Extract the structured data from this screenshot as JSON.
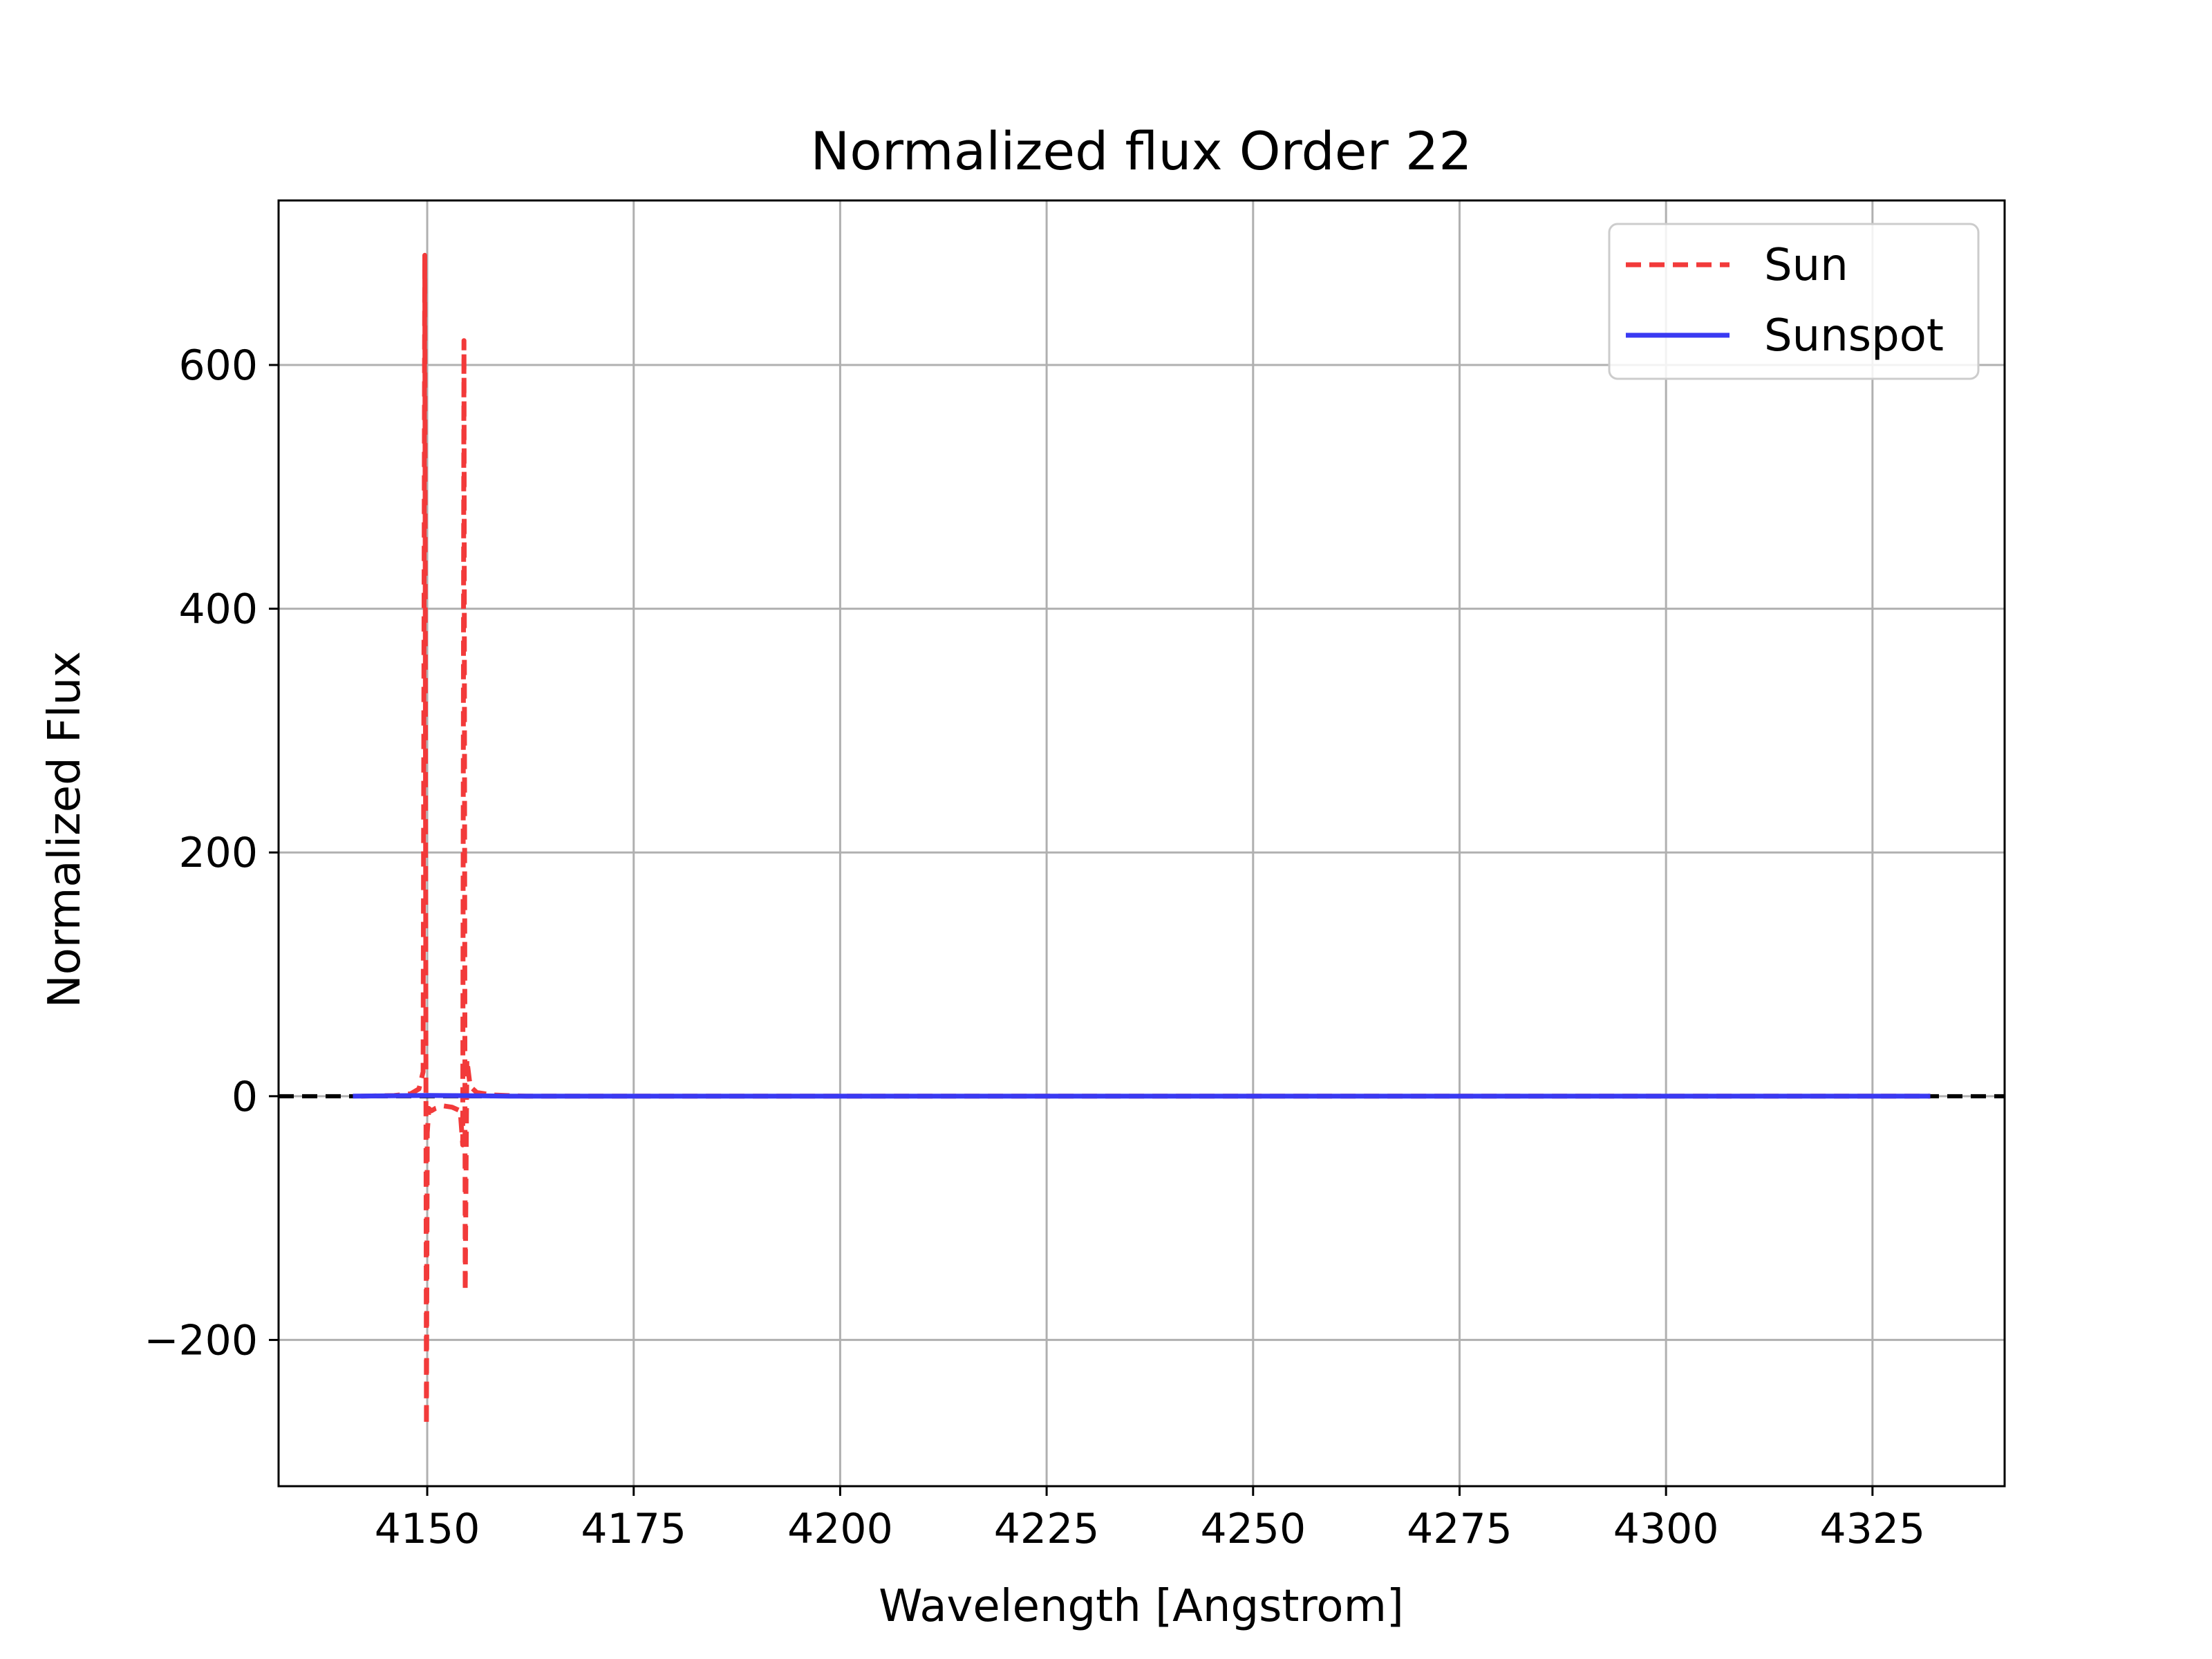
{
  "chart_data": {
    "type": "line",
    "title": "Normalized flux Order 22",
    "xlabel": "Wavelength [Angstrom]",
    "ylabel": "Normalized Flux",
    "xlim": [
      4132,
      4341
    ],
    "ylim": [
      -320,
      735
    ],
    "xticks": [
      4150,
      4175,
      4200,
      4225,
      4250,
      4275,
      4300,
      4325
    ],
    "yticks": [
      -200,
      0,
      200,
      400,
      600
    ],
    "ytick_labels": [
      "−200",
      "0",
      "200",
      "400",
      "600"
    ],
    "grid": true,
    "legend_position": "upper right",
    "reference_line": {
      "y": 0,
      "style": "dashed",
      "color": "#000000"
    },
    "series": [
      {
        "name": "Sun",
        "style": "dashed",
        "color": "#f23a3a",
        "x": [
          4142,
          4146,
          4148,
          4149,
          4149.5,
          4149.7,
          4149.9,
          4150.0,
          4150.2,
          4150.5,
          4151,
          4152,
          4153,
          4154.0,
          4154.3,
          4154.45,
          4154.6,
          4154.8,
          4155.2,
          4156,
          4158,
          4162,
          4200,
          4250,
          4300,
          4325,
          4332
        ],
        "y": [
          0,
          0.5,
          2,
          6,
          20,
          690,
          -270,
          -30,
          -10,
          -12,
          -10,
          -8,
          -9,
          -12,
          -40,
          620,
          -160,
          30,
          8,
          3,
          1,
          0,
          0,
          0,
          0,
          0,
          0
        ]
      },
      {
        "name": "Sunspot",
        "style": "solid",
        "color": "#3a3af2",
        "x": [
          4141,
          4150,
          4155,
          4160,
          4200,
          4250,
          4300,
          4325,
          4332
        ],
        "y": [
          0,
          0.6,
          0.4,
          0.1,
          0,
          0,
          0,
          0,
          0
        ]
      }
    ]
  }
}
